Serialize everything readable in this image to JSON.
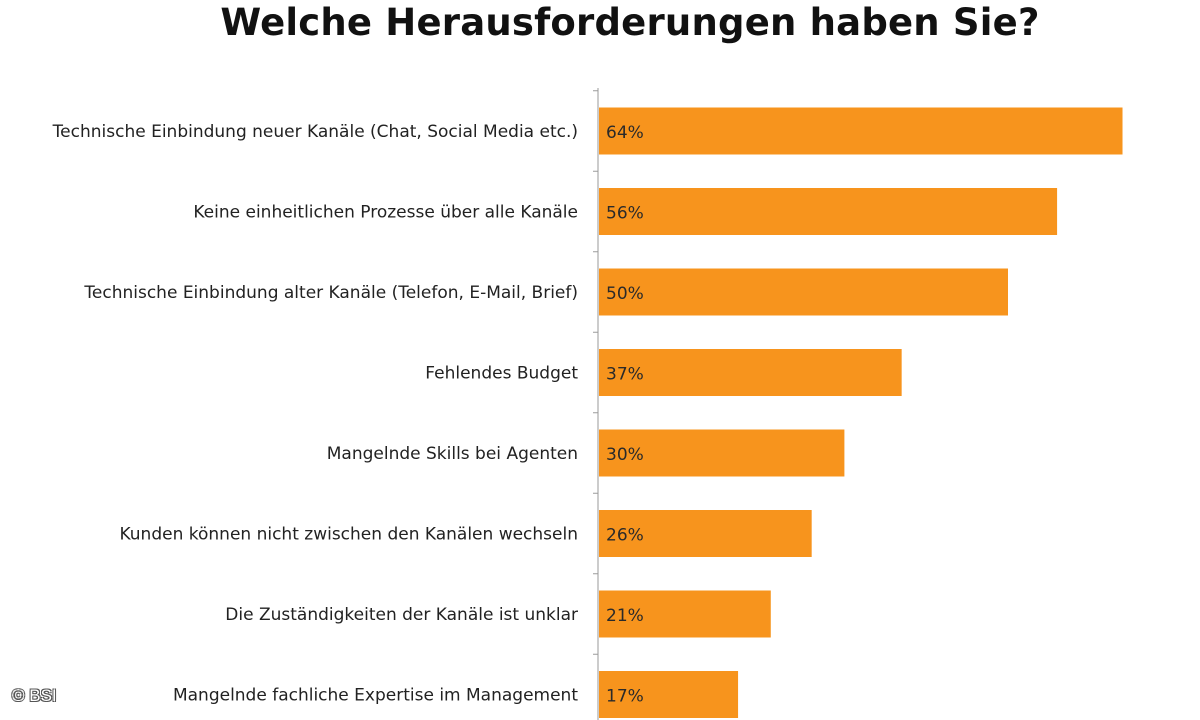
{
  "chart_data": {
    "type": "bar",
    "orientation": "horizontal",
    "title": "Welche Herausforderungen haben Sie?",
    "categories": [
      "Technische Einbindung neuer Kanäle (Chat, Social Media etc.)",
      "Keine einheitlichen Prozesse über alle Kanäle",
      "Technische Einbindung alter Kanäle (Telefon, E-Mail, Brief)",
      "Fehlendes Budget",
      "Mangelnde Skills bei Agenten",
      "Kunden können nicht zwischen den Kanälen wechseln",
      "Die Zuständigkeiten der Kanäle ist unklar",
      "Mangelnde fachliche Expertise im Management"
    ],
    "values": [
      64,
      56,
      50,
      37,
      30,
      26,
      21,
      17
    ],
    "value_labels": [
      "64%",
      "56%",
      "50%",
      "37%",
      "30%",
      "26%",
      "21%",
      "17%"
    ],
    "unit": "%",
    "xlim": [
      0,
      70
    ],
    "bar_color": "#f7941d",
    "grid": false,
    "legend": "none"
  },
  "copyright": "© BSI"
}
